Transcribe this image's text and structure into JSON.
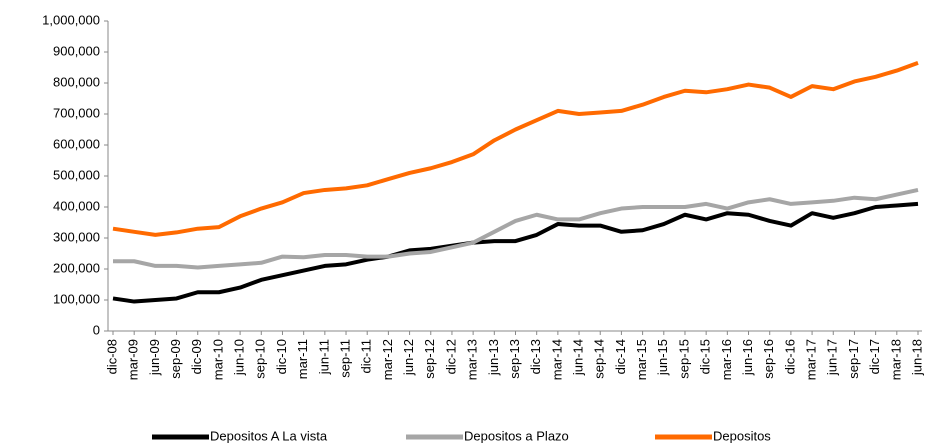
{
  "chart_data": {
    "type": "line",
    "categories": [
      "dic-08",
      "mar-09",
      "jun-09",
      "sep-09",
      "dic-09",
      "mar-10",
      "jun-10",
      "sep-10",
      "dic-10",
      "mar-11",
      "jun-11",
      "sep-11",
      "dic-11",
      "mar-12",
      "jun-12",
      "sep-12",
      "dic-12",
      "mar-13",
      "jun-13",
      "sep-13",
      "dic-13",
      "mar-14",
      "jun-14",
      "sep-14",
      "dic-14",
      "mar-15",
      "jun-15",
      "sep-15",
      "dic-15",
      "mar-16",
      "jun-16",
      "sep-16",
      "dic-16",
      "mar-17",
      "jun-17",
      "sep-17",
      "dic-17",
      "mar-18",
      "jun-18"
    ],
    "series": [
      {
        "name": "Depositos A La vista",
        "color": "#000000",
        "values": [
          105000,
          95000,
          100000,
          105000,
          125000,
          125000,
          140000,
          165000,
          180000,
          195000,
          210000,
          215000,
          230000,
          240000,
          260000,
          265000,
          275000,
          285000,
          290000,
          290000,
          310000,
          345000,
          340000,
          340000,
          320000,
          325000,
          345000,
          375000,
          360000,
          380000,
          375000,
          355000,
          340000,
          380000,
          365000,
          380000,
          400000,
          405000,
          410000
        ]
      },
      {
        "name": "Depositos a Plazo",
        "color": "#a6a6a6",
        "values": [
          225000,
          225000,
          210000,
          210000,
          205000,
          210000,
          215000,
          220000,
          240000,
          238000,
          245000,
          245000,
          240000,
          240000,
          250000,
          255000,
          270000,
          285000,
          320000,
          355000,
          375000,
          360000,
          360000,
          380000,
          395000,
          400000,
          400000,
          400000,
          410000,
          395000,
          415000,
          425000,
          410000,
          415000,
          420000,
          430000,
          425000,
          440000,
          455000
        ]
      },
      {
        "name": "Depositos",
        "color": "#ff6a00",
        "values": [
          330000,
          320000,
          310000,
          318000,
          330000,
          335000,
          370000,
          395000,
          415000,
          445000,
          455000,
          460000,
          470000,
          490000,
          510000,
          525000,
          545000,
          570000,
          615000,
          650000,
          680000,
          710000,
          700000,
          705000,
          710000,
          730000,
          755000,
          775000,
          770000,
          780000,
          795000,
          785000,
          755000,
          790000,
          780000,
          805000,
          820000,
          840000,
          865000
        ]
      }
    ],
    "ylim": [
      0,
      1000000
    ],
    "yticks": [
      0,
      {
        "value": 100000,
        "label": "100,000"
      },
      {
        "value": 200000,
        "label": "200,000"
      },
      {
        "value": 300000,
        "label": "300,000"
      },
      {
        "value": 400000,
        "label": "400,000"
      },
      {
        "value": 500000,
        "label": "500,000"
      },
      {
        "value": 600000,
        "label": "600,000"
      },
      {
        "value": 700000,
        "label": "700,000"
      },
      {
        "value": 800000,
        "label": "800,000"
      },
      {
        "value": 900000,
        "label": "900,000"
      },
      {
        "value": 1000000,
        "label": "1,000,000"
      }
    ],
    "legend": "bottom"
  }
}
